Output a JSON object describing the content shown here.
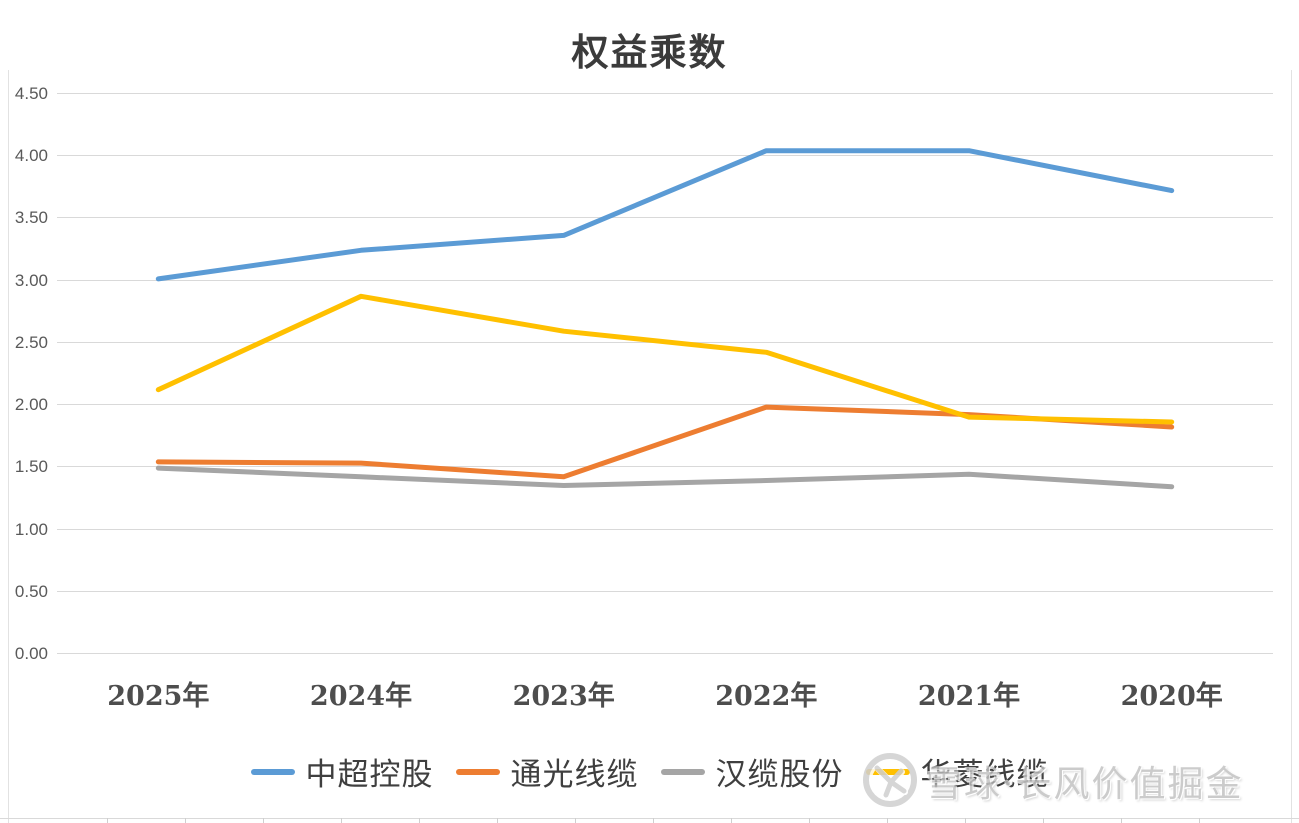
{
  "title": "权益乘数",
  "chart_data": {
    "type": "line",
    "title": "权益乘数",
    "xlabel": "",
    "ylabel": "",
    "categories": [
      "2025年",
      "2024年",
      "2023年",
      "2022年",
      "2021年",
      "2020年"
    ],
    "series": [
      {
        "name": "中超控股",
        "color": "#5B9BD5",
        "values": [
          3.01,
          3.24,
          3.36,
          4.04,
          4.04,
          3.72
        ]
      },
      {
        "name": "通光线缆",
        "color": "#ED7D31",
        "values": [
          1.54,
          1.53,
          1.42,
          1.98,
          1.92,
          1.82
        ]
      },
      {
        "name": "汉缆股份",
        "color": "#A5A5A5",
        "values": [
          1.49,
          1.42,
          1.35,
          1.39,
          1.44,
          1.34
        ]
      },
      {
        "name": "华菱线缆",
        "color": "#FFC000",
        "values": [
          2.12,
          2.87,
          2.59,
          2.42,
          1.9,
          1.86
        ]
      }
    ],
    "ylim": [
      0,
      4.5
    ],
    "y_ticks": [
      "0.00",
      "0.50",
      "1.00",
      "1.50",
      "2.00",
      "2.50",
      "3.00",
      "3.50",
      "4.00",
      "4.50"
    ],
    "grid": true,
    "legend_position": "bottom"
  },
  "watermark": {
    "logo": "xueqiu-snowball-icon",
    "text": "雪球·长风价值掘金"
  },
  "colors": {
    "background": "#FFFFFF",
    "gridline": "#D9D9D9",
    "axis_text": "#595959",
    "title_text": "#3B3B3B",
    "watermark_text": "#AFAFAF"
  }
}
